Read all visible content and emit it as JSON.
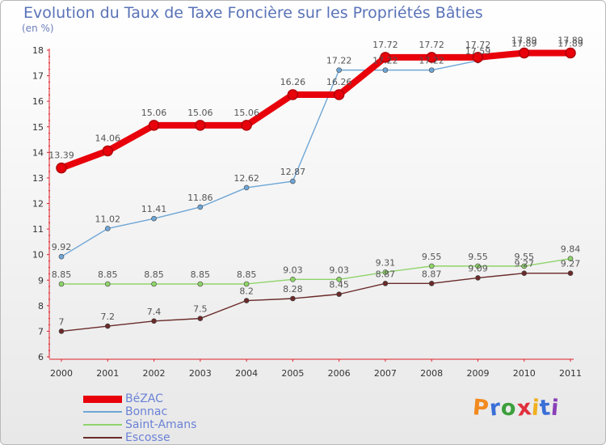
{
  "header": {
    "title": "Evolution du Taux de Taxe Foncière sur les Propriétés Bâties",
    "unit": "(en %)"
  },
  "logo": {
    "text": "Proxiti",
    "letter_colors": [
      "#f28a1e",
      "#3a6fd8",
      "#3ca03c",
      "#e0303c",
      "#f0b020",
      "#3a6fd8",
      "#8a3fb8"
    ]
  },
  "chart_data": {
    "type": "line",
    "title": "Evolution du Taux de Taxe Foncière sur les Propriétés Bâties",
    "ylabel": "(en %)",
    "x": [
      "2000",
      "2001",
      "2002",
      "2003",
      "2004",
      "2005",
      "2006",
      "2007",
      "2008",
      "2009",
      "2010",
      "2011"
    ],
    "ylim": [
      6,
      18
    ],
    "yticks": [
      "6",
      "7",
      "8",
      "9",
      "10",
      "11",
      "12",
      "13",
      "14",
      "15",
      "16",
      "17",
      "18"
    ],
    "grid": false,
    "legend_position": "bottom-left",
    "series": [
      {
        "name": "BéZAC",
        "color": "#e8000b",
        "thick": true,
        "values": [
          13.39,
          14.06,
          15.06,
          15.06,
          15.06,
          16.26,
          16.26,
          17.72,
          17.72,
          17.72,
          17.89,
          17.89
        ],
        "labels": [
          "13.39",
          "14.06",
          "15.06",
          "15.06",
          "15.06",
          "16.26",
          "16.26",
          "17.72",
          "17.72",
          "17.72",
          "17.89",
          "17.89"
        ]
      },
      {
        "name": "Bonnac",
        "color": "#6ea6d6",
        "thick": false,
        "values": [
          9.92,
          11.02,
          11.41,
          11.86,
          12.62,
          12.87,
          17.22,
          17.22,
          17.22,
          17.59,
          17.89,
          17.89
        ],
        "labels": [
          "9.92",
          "11.02",
          "11.41",
          "11.86",
          "12.62",
          "12.87",
          "17.22",
          "17.22",
          "17.22",
          "17.59",
          "17.89",
          "17.89"
        ]
      },
      {
        "name": "Saint-Amans",
        "color": "#8fd46a",
        "thick": false,
        "values": [
          8.85,
          8.85,
          8.85,
          8.85,
          8.85,
          9.03,
          9.03,
          9.31,
          9.55,
          9.55,
          9.55,
          9.84
        ],
        "labels": [
          "8.85",
          "8.85",
          "8.85",
          "8.85",
          "8.85",
          "9.03",
          "9.03",
          "9.31",
          "9.55",
          "9.55",
          "9.55",
          "9.84"
        ]
      },
      {
        "name": "Escosse",
        "color": "#6a2a2a",
        "thick": false,
        "values": [
          7,
          7.2,
          7.4,
          7.5,
          8.2,
          8.28,
          8.45,
          8.87,
          8.87,
          9.09,
          9.27,
          9.27
        ],
        "labels": [
          "7",
          "7.2",
          "7.4",
          "7.5",
          "8.2",
          "8.28",
          "8.45",
          "8.87",
          "8.87",
          "9.09",
          "9.27",
          "9.27"
        ]
      }
    ]
  }
}
